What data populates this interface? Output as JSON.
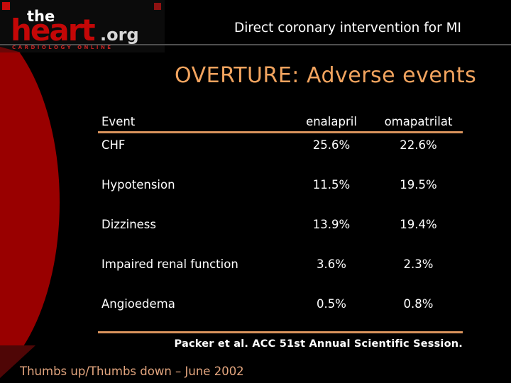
{
  "logo": {
    "the": "the",
    "heart": "heart",
    "org": ".org",
    "tagline": "CARDIOLOGY ONLINE"
  },
  "header": {
    "title": "Direct coronary intervention for MI"
  },
  "slide_title": "OVERTURE: Adverse events",
  "table": {
    "columns": [
      "Event",
      "enalapril",
      "omapatrilat"
    ],
    "rows": [
      {
        "event": "CHF",
        "enalapril": "25.6%",
        "omapatrilat": "22.6%"
      },
      {
        "event": "Hypotension",
        "enalapril": "11.5%",
        "omapatrilat": "19.5%"
      },
      {
        "event": "Dizziness",
        "enalapril": "13.9%",
        "omapatrilat": "19.4%"
      },
      {
        "event": "Impaired renal function",
        "enalapril": "3.6%",
        "omapatrilat": "2.3%"
      },
      {
        "event": "Angioedema",
        "enalapril": "0.5%",
        "omapatrilat": "0.8%"
      }
    ]
  },
  "footer": {
    "citation": "Packer et al. ACC 51st Annual Scientific Session.",
    "credit": "Thumbs up/Thumbs down – June 2002"
  },
  "colors": {
    "accent_orange": "#f2a45f",
    "rule_orange": "#d9935c",
    "brand_red": "#990000",
    "logo_red": "#c40707",
    "credit_tan": "#e4a67f",
    "background": "#000000",
    "text_white": "#ffffff"
  }
}
